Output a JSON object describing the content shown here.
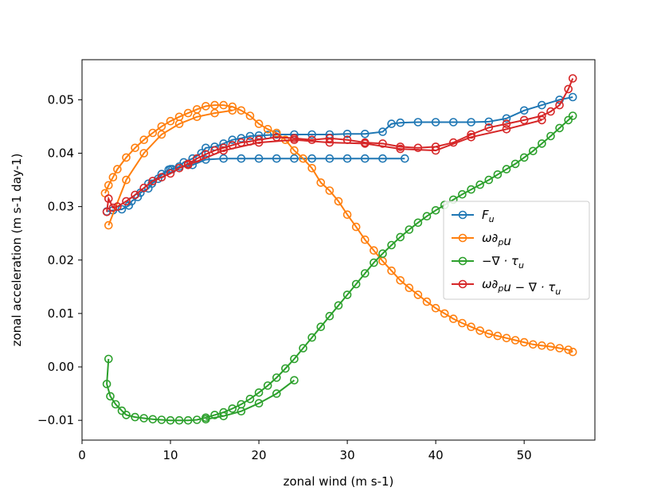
{
  "chart_data": {
    "type": "scatter",
    "title": "",
    "xlabel": "zonal wind (m s-1)",
    "ylabel": "zonal acceleration (m s-1 day-1)",
    "xlim": [
      0,
      58
    ],
    "ylim": [
      -0.0137,
      0.0575
    ],
    "xticks": [
      0,
      10,
      20,
      30,
      40,
      50
    ],
    "xtick_labels": [
      "0",
      "10",
      "20",
      "30",
      "40",
      "50"
    ],
    "yticks": [
      -0.01,
      0.0,
      0.01,
      0.02,
      0.03,
      0.04,
      0.05
    ],
    "ytick_labels": [
      "−0.01",
      "0.00",
      "0.01",
      "0.02",
      "0.03",
      "0.04",
      "0.05"
    ],
    "grid": false,
    "legend_position": "center-right",
    "marker": "open-circle",
    "series": [
      {
        "name": "F_u",
        "label_main": "F",
        "label_sub": "u",
        "color": "#1f77b4",
        "x": [
          2.8,
          3.5,
          4.5,
          5.3,
          5.6,
          6.3,
          6.6,
          7.5,
          7.9,
          8.6,
          9.0,
          9.8,
          10.2,
          11.0,
          11.5,
          12.5,
          13.5,
          14.0,
          15.0,
          16.0,
          17.0,
          18.0,
          19.0,
          20.0,
          21.0,
          22.0,
          24.0,
          26.0,
          28.0,
          30.0,
          32.0,
          34.0,
          35.0,
          36.0,
          38.0,
          40.0,
          42.0,
          44.0,
          46.0,
          48.0,
          50.0,
          52.0,
          54.0,
          55.5
        ],
        "y": [
          0.0291,
          0.0293,
          0.0295,
          0.0302,
          0.031,
          0.0318,
          0.0326,
          0.0334,
          0.0343,
          0.0352,
          0.0361,
          0.0369,
          0.037,
          0.0375,
          0.0383,
          0.039,
          0.04,
          0.041,
          0.0412,
          0.0418,
          0.0425,
          0.0428,
          0.0432,
          0.0433,
          0.0434,
          0.0435,
          0.0435,
          0.0435,
          0.0435,
          0.0436,
          0.0436,
          0.044,
          0.0455,
          0.0457,
          0.0458,
          0.0458,
          0.0458,
          0.0458,
          0.0459,
          0.0465,
          0.048,
          0.049,
          0.05,
          0.0505
        ],
        "x_lower": [
          7.5,
          10.0,
          12.5,
          14.0,
          16.0,
          18.0,
          20.0,
          22.0,
          24.0,
          26.0,
          28.0,
          30.0,
          32.0,
          34.0,
          36.5
        ],
        "y_lower": [
          0.0343,
          0.037,
          0.0378,
          0.0388,
          0.039,
          0.039,
          0.039,
          0.039,
          0.039,
          0.039,
          0.039,
          0.039,
          0.039,
          0.039,
          0.039
        ]
      },
      {
        "name": "ω∂_p u",
        "label_main": "ω∂",
        "label_sub": "p",
        "label_tail": "u",
        "color": "#ff7f0e",
        "x": [
          2.6,
          3.0,
          3.5,
          4.0,
          5.0,
          6.0,
          7.0,
          8.0,
          9.0,
          10.0,
          11.0,
          12.0,
          13.0,
          14.0,
          15.0,
          16.0,
          17.0,
          18.0,
          19.0,
          20.0,
          21.0,
          22.0,
          23.0,
          24.0,
          25.0,
          26.0,
          27.0,
          28.0,
          29.0,
          30.0,
          31.0,
          32.0,
          33.0,
          34.0,
          35.0,
          36.0,
          37.0,
          38.0,
          39.0,
          40.0,
          41.0,
          42.0,
          43.0,
          44.0,
          45.0,
          46.0,
          47.0,
          48.0,
          49.0,
          50.0,
          51.0,
          52.0,
          53.0,
          54.0,
          55.0,
          55.5
        ],
        "y": [
          0.0325,
          0.034,
          0.0355,
          0.037,
          0.0392,
          0.041,
          0.0425,
          0.0438,
          0.045,
          0.046,
          0.0468,
          0.0475,
          0.0482,
          0.0488,
          0.049,
          0.049,
          0.0487,
          0.048,
          0.047,
          0.0455,
          0.0445,
          0.0438,
          0.0425,
          0.0405,
          0.039,
          0.0372,
          0.0345,
          0.033,
          0.031,
          0.0285,
          0.0262,
          0.0238,
          0.0218,
          0.0198,
          0.018,
          0.0162,
          0.0148,
          0.0135,
          0.0122,
          0.011,
          0.01,
          0.009,
          0.0082,
          0.0075,
          0.0068,
          0.0062,
          0.0058,
          0.0054,
          0.005,
          0.0046,
          0.0042,
          0.004,
          0.0038,
          0.0035,
          0.0032,
          0.0028
        ],
        "x_lower": [
          3.0,
          5.0,
          7.0,
          9.0,
          11.0,
          13.0,
          15.0,
          17.0
        ],
        "y_lower": [
          0.0265,
          0.035,
          0.04,
          0.0435,
          0.0455,
          0.0468,
          0.0475,
          0.048
        ]
      },
      {
        "name": "−∇·τ_u",
        "label_main": "−∇ · τ",
        "label_sub": "u",
        "color": "#2ca02c",
        "x": [
          3.0,
          2.8,
          3.2,
          3.8,
          4.5,
          5.0,
          6.0,
          7.0,
          8.0,
          9.0,
          10.0,
          11.0,
          12.0,
          13.0,
          14.0,
          15.0,
          16.0,
          17.0,
          18.0,
          19.0,
          20.0,
          21.0,
          22.0,
          23.0,
          24.0,
          25.0,
          26.0,
          27.0,
          28.0,
          29.0,
          30.0,
          31.0,
          32.0,
          33.0,
          34.0,
          35.0,
          36.0,
          37.0,
          38.0,
          39.0,
          40.0,
          41.0,
          42.0,
          43.0,
          44.0,
          45.0,
          46.0,
          47.0,
          48.0,
          49.0,
          50.0,
          51.0,
          52.0,
          53.0,
          54.0,
          55.0,
          55.5
        ],
        "y": [
          0.0015,
          -0.0032,
          -0.0055,
          -0.007,
          -0.0082,
          -0.009,
          -0.0094,
          -0.0096,
          -0.0098,
          -0.0099,
          -0.01,
          -0.01,
          -0.01,
          -0.0099,
          -0.0095,
          -0.009,
          -0.0085,
          -0.0078,
          -0.007,
          -0.006,
          -0.0048,
          -0.0035,
          -0.002,
          -0.0003,
          0.0015,
          0.0035,
          0.0055,
          0.0075,
          0.0095,
          0.0115,
          0.0135,
          0.0155,
          0.0175,
          0.0195,
          0.0212,
          0.0228,
          0.0243,
          0.0257,
          0.027,
          0.0282,
          0.0293,
          0.0303,
          0.0313,
          0.0323,
          0.0332,
          0.0341,
          0.035,
          0.036,
          0.037,
          0.038,
          0.0392,
          0.0404,
          0.0418,
          0.0432,
          0.0447,
          0.0462,
          0.047
        ],
        "x_lower": [
          14.0,
          16.0,
          18.0,
          20.0,
          22.0,
          24.0
        ],
        "y_lower": [
          -0.0098,
          -0.0092,
          -0.0083,
          -0.0068,
          -0.005,
          -0.0025
        ]
      },
      {
        "name": "ω∂_p u − ∇·τ_u",
        "label_main": "ω∂",
        "label_sub": "p",
        "label_tail": "u − ∇ · τ",
        "label_sub2": "u",
        "color": "#d62728",
        "x": [
          2.8,
          3.0,
          3.5,
          4.0,
          5.0,
          6.0,
          7.0,
          8.0,
          9.0,
          10.0,
          11.0,
          12.0,
          13.0,
          14.0,
          15.0,
          16.0,
          17.0,
          18.0,
          19.0,
          20.0,
          22.0,
          24.0,
          26.0,
          28.0,
          30.0,
          32.0,
          34.0,
          36.0,
          38.0,
          40.0,
          42.0,
          44.0,
          46.0,
          48.0,
          50.0,
          52.0,
          53.0,
          54.0,
          55.0,
          55.5
        ],
        "y": [
          0.029,
          0.0315,
          0.0298,
          0.03,
          0.031,
          0.0322,
          0.0335,
          0.0348,
          0.0355,
          0.0362,
          0.0372,
          0.038,
          0.039,
          0.0398,
          0.0405,
          0.041,
          0.0415,
          0.042,
          0.0422,
          0.0425,
          0.043,
          0.0428,
          0.0425,
          0.0428,
          0.0425,
          0.042,
          0.0418,
          0.0412,
          0.041,
          0.0412,
          0.042,
          0.0435,
          0.0448,
          0.0455,
          0.0462,
          0.047,
          0.0478,
          0.049,
          0.052,
          0.054
        ],
        "x_lower": [
          12.0,
          16.0,
          20.0,
          24.0,
          28.0,
          32.0,
          36.0,
          40.0,
          44.0,
          48.0,
          52.0
        ],
        "y_lower": [
          0.0378,
          0.0405,
          0.042,
          0.0425,
          0.042,
          0.0418,
          0.0408,
          0.0405,
          0.043,
          0.0445,
          0.0462
        ]
      }
    ]
  }
}
